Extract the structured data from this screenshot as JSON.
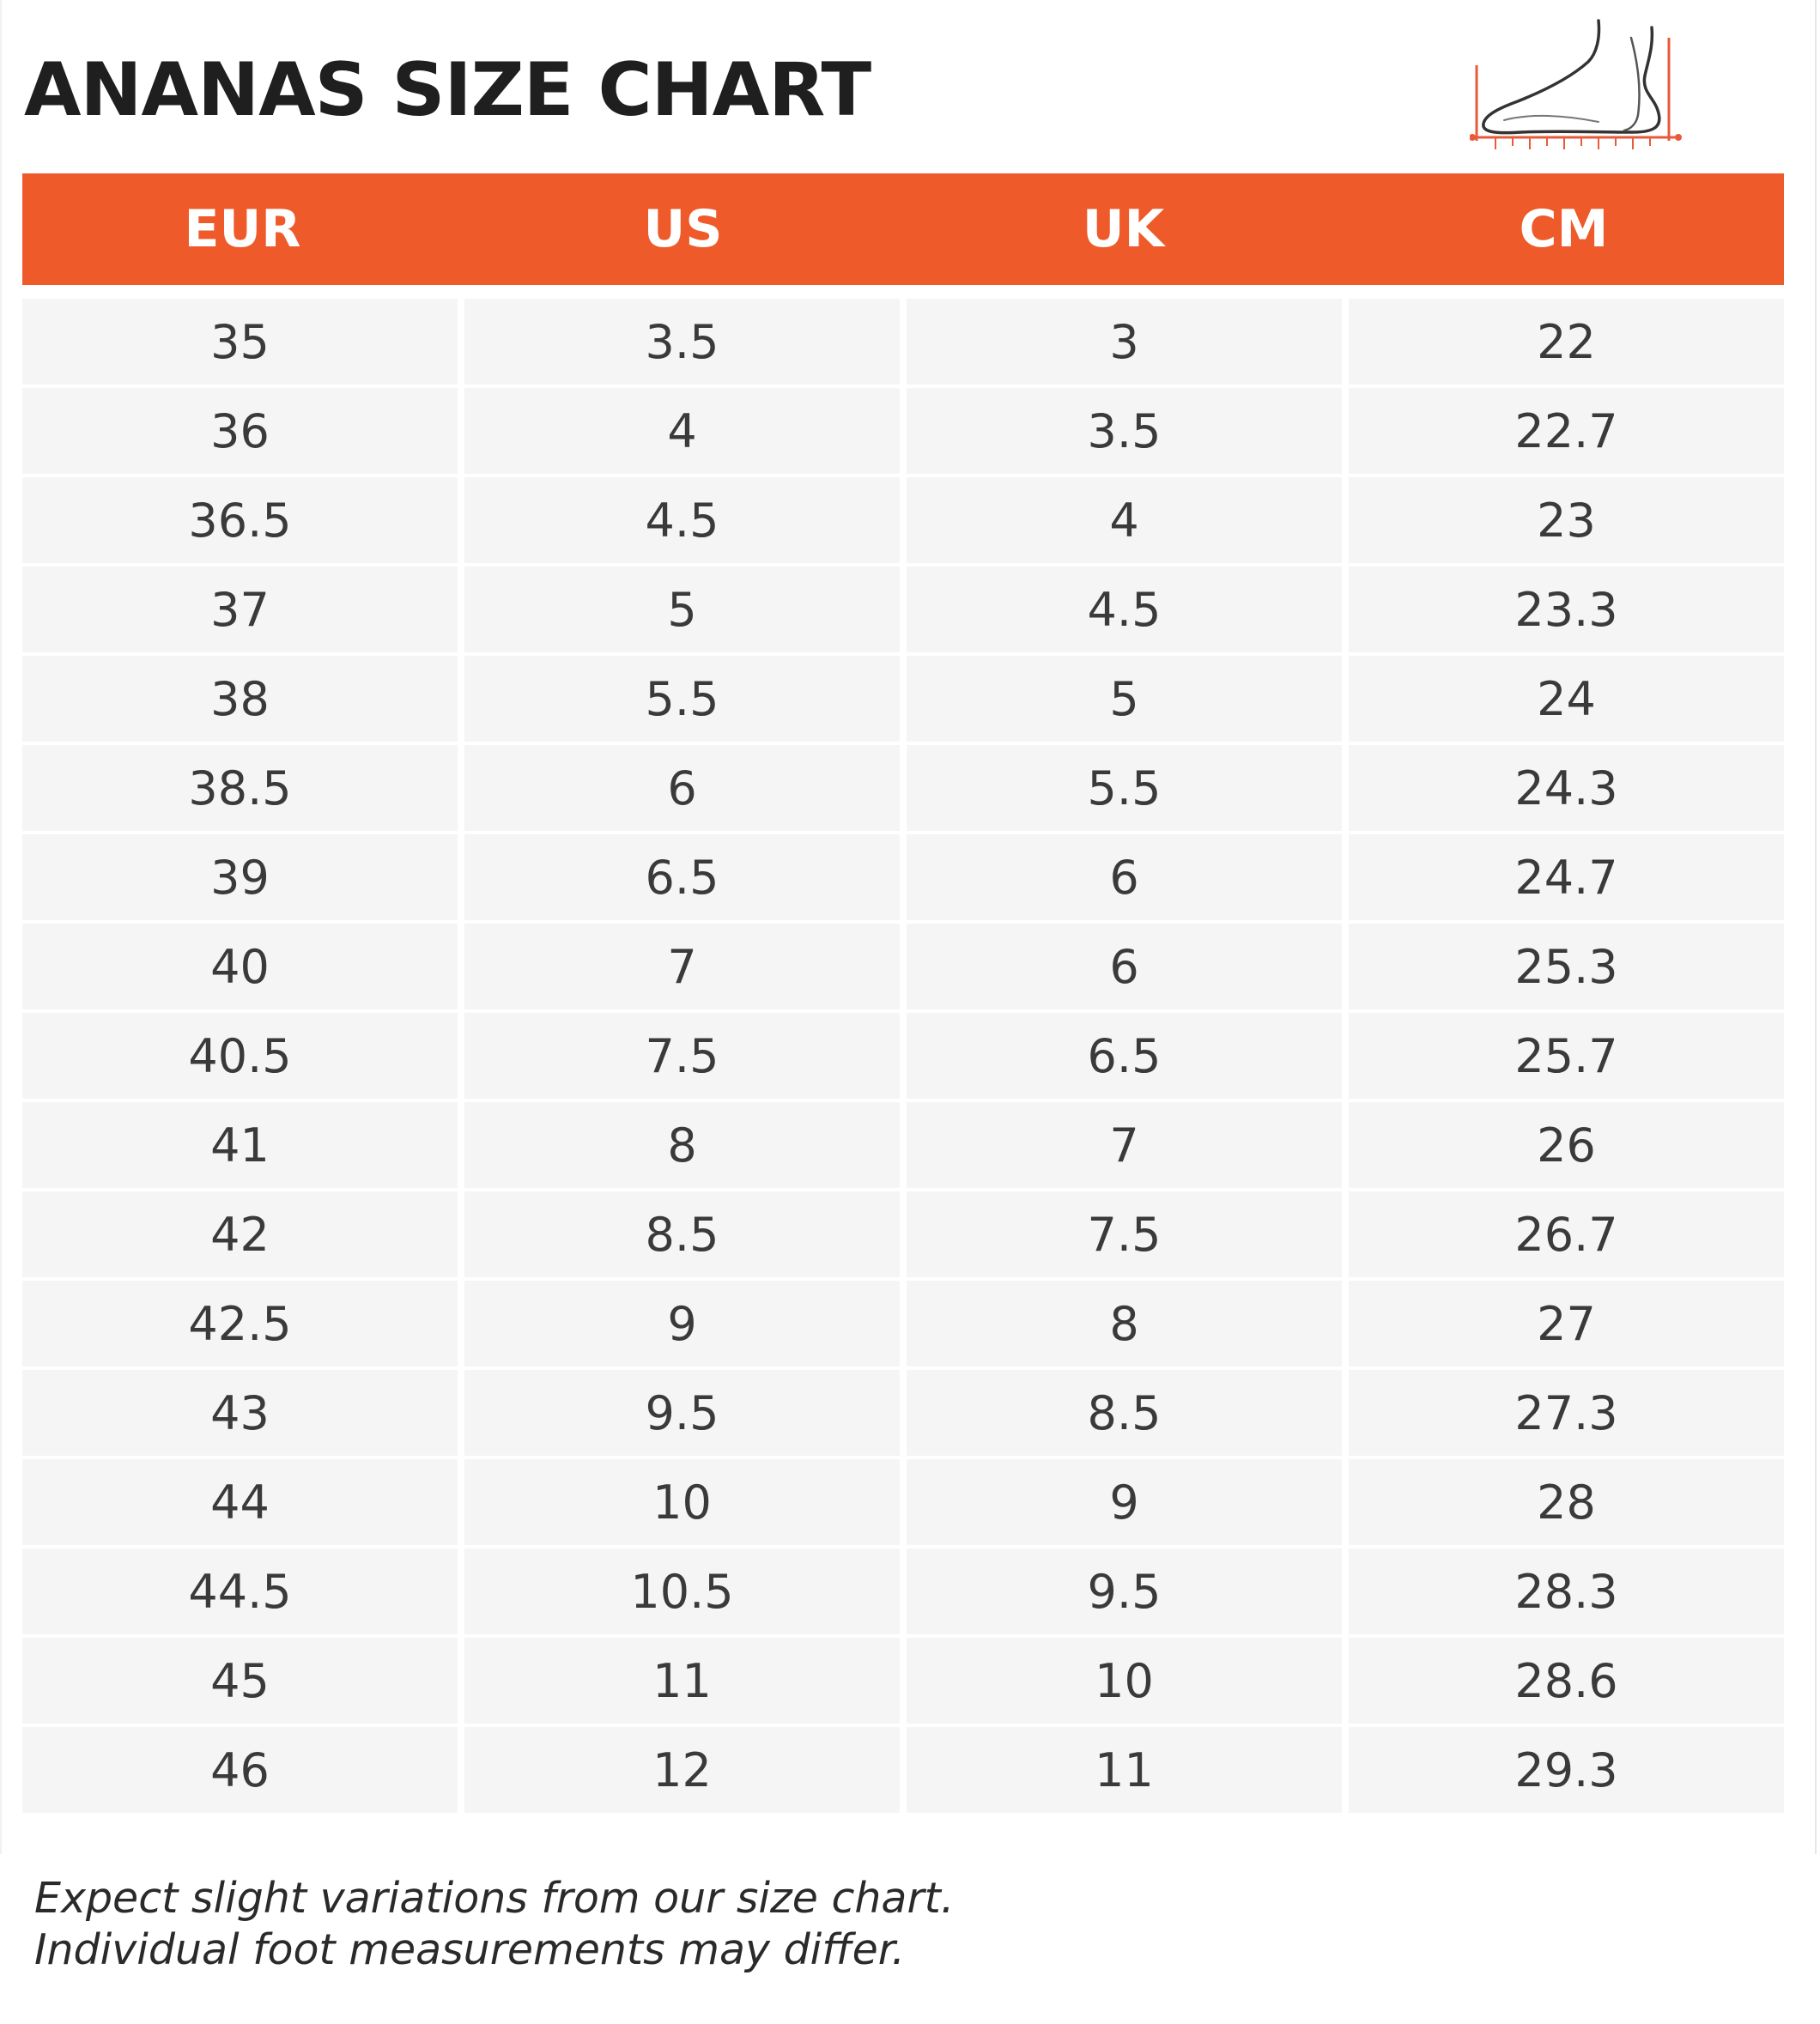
{
  "title": "ANANAS SIZE CHART",
  "colors": {
    "header_bg": "#ef5a2a",
    "header_text": "#ffffff",
    "row_bg": "#f5f5f5",
    "text": "#3a3a3a",
    "icon_accent": "#e85a3a"
  },
  "icon": "foot-measurement-icon",
  "columns": [
    "EUR",
    "US",
    "UK",
    "CM"
  ],
  "rows": [
    [
      "35",
      "3.5",
      "3",
      "22"
    ],
    [
      "36",
      "4",
      "3.5",
      "22.7"
    ],
    [
      "36.5",
      "4.5",
      "4",
      "23"
    ],
    [
      "37",
      "5",
      "4.5",
      "23.3"
    ],
    [
      "38",
      "5.5",
      "5",
      "24"
    ],
    [
      "38.5",
      "6",
      "5.5",
      "24.3"
    ],
    [
      "39",
      "6.5",
      "6",
      "24.7"
    ],
    [
      "40",
      "7",
      "6",
      "25.3"
    ],
    [
      "40.5",
      "7.5",
      "6.5",
      "25.7"
    ],
    [
      "41",
      "8",
      "7",
      "26"
    ],
    [
      "42",
      "8.5",
      "7.5",
      "26.7"
    ],
    [
      "42.5",
      "9",
      "8",
      "27"
    ],
    [
      "43",
      "9.5",
      "8.5",
      "27.3"
    ],
    [
      "44",
      "10",
      "9",
      "28"
    ],
    [
      "44.5",
      "10.5",
      "9.5",
      "28.3"
    ],
    [
      "45",
      "11",
      "10",
      "28.6"
    ],
    [
      "46",
      "12",
      "11",
      "29.3"
    ]
  ],
  "note": {
    "line1": "Expect slight variations from our size chart.",
    "line2": "Individual foot measurements may differ."
  }
}
